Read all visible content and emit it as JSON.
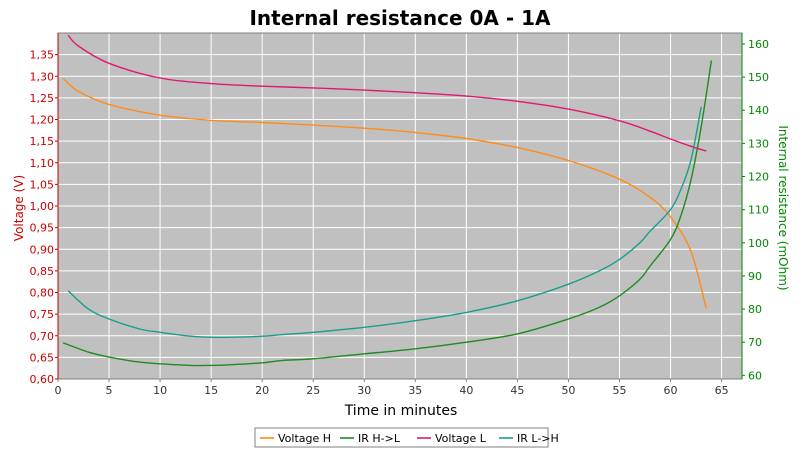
{
  "chart_data": {
    "type": "line",
    "title": "Internal resistance  0A - 1A",
    "xlabel": "Time in minutes",
    "ylabel_left": "Voltage (V)",
    "ylabel_right": "Internal resistance (mOhm)",
    "xlim": [
      0,
      67
    ],
    "ylim_left": [
      0.6,
      1.4
    ],
    "ylim_right": [
      58.9,
      163.3
    ],
    "x_ticks": [
      "0",
      "5",
      "10",
      "15",
      "20",
      "25",
      "30",
      "35",
      "40",
      "45",
      "50",
      "55",
      "60",
      "65"
    ],
    "y_left_ticks": [
      "0,60",
      "0,65",
      "0,70",
      "0,75",
      "0,80",
      "0,85",
      "0,90",
      "0,95",
      "1,00",
      "1,05",
      "1,10",
      "1,15",
      "1,20",
      "1,25",
      "1,30",
      "1,35"
    ],
    "y_right_ticks": [
      "60",
      "70",
      "80",
      "90",
      "100",
      "110",
      "120",
      "130",
      "140",
      "150",
      "160"
    ],
    "grid": true,
    "legend_position": "bottom",
    "colors": {
      "plot_background": "#c0c0c0",
      "grid": "#ffffff",
      "left_axis": "#cc0000",
      "right_axis": "#008800"
    },
    "series": [
      {
        "name": "Voltage H",
        "axis": "left",
        "color": "#ff8c1a",
        "x": [
          0.5,
          2,
          5,
          10,
          15,
          20,
          25,
          30,
          35,
          40,
          45,
          50,
          55,
          58,
          60,
          62,
          63.5
        ],
        "y": [
          1.295,
          1.265,
          1.235,
          1.21,
          1.198,
          1.193,
          1.187,
          1.18,
          1.17,
          1.156,
          1.135,
          1.105,
          1.062,
          1.02,
          0.975,
          0.895,
          0.763
        ]
      },
      {
        "name": "IR H->L",
        "axis": "right",
        "color": "#1e8c1e",
        "x": [
          0.5,
          3,
          5,
          8,
          10,
          13,
          15,
          17,
          20,
          22,
          25,
          30,
          35,
          40,
          45,
          50,
          53,
          55,
          57,
          58,
          60,
          61,
          62,
          63,
          64
        ],
        "y": [
          69.8,
          67,
          65.5,
          64,
          63.5,
          63,
          63,
          63.2,
          63.8,
          64.5,
          65,
          66.5,
          68,
          70,
          72.5,
          77,
          80.5,
          84,
          89,
          93,
          101,
          108,
          119,
          135,
          155
        ]
      },
      {
        "name": "Voltage L",
        "axis": "left",
        "color": "#e0196e",
        "x": [
          1,
          2,
          5,
          10,
          15,
          20,
          25,
          30,
          35,
          40,
          45,
          50,
          55,
          58,
          60,
          62,
          63.5
        ],
        "y": [
          1.395,
          1.37,
          1.33,
          1.296,
          1.283,
          1.277,
          1.273,
          1.268,
          1.262,
          1.254,
          1.242,
          1.224,
          1.197,
          1.173,
          1.155,
          1.138,
          1.127
        ]
      },
      {
        "name": "IR L->H",
        "axis": "right",
        "color": "#1a9e8c",
        "x": [
          1,
          3,
          5,
          8,
          10,
          13,
          15,
          17,
          20,
          22,
          25,
          30,
          35,
          40,
          45,
          50,
          53,
          55,
          57,
          58,
          60,
          61,
          62,
          63
        ],
        "y": [
          85.5,
          80,
          77,
          74,
          73,
          71.8,
          71.5,
          71.5,
          71.8,
          72.3,
          73,
          74.5,
          76.5,
          79,
          82.5,
          87.5,
          91.5,
          95,
          100,
          103.5,
          110,
          116,
          125,
          141
        ]
      }
    ]
  }
}
